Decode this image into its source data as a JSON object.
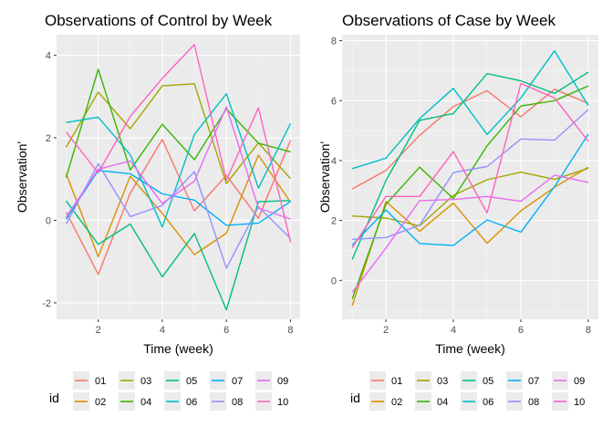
{
  "legend_title": "id",
  "ids": [
    "01",
    "02",
    "03",
    "04",
    "05",
    "06",
    "07",
    "08",
    "09",
    "10"
  ],
  "colors": [
    "#F8766D",
    "#D89000",
    "#A3A500",
    "#39B600",
    "#00BF7D",
    "#00BFC4",
    "#00B0F6",
    "#9590FF",
    "#E76BF3",
    "#FF62BC"
  ],
  "chart_data": [
    {
      "type": "line",
      "title": "Observations of Control by Week",
      "xlabel": "Time (week)",
      "ylabel": "Observation'",
      "xlim": [
        0.7,
        8.3
      ],
      "ylim": [
        -2.4,
        4.5
      ],
      "xticks": [
        2,
        4,
        6,
        8
      ],
      "yticks": [
        -2,
        0,
        2,
        4
      ],
      "grid": true,
      "legend": "bottom",
      "x": [
        1,
        2,
        3,
        4,
        5,
        6,
        7,
        8
      ],
      "series": [
        {
          "name": "01",
          "values": [
            0.2,
            -1.31,
            0.66,
            1.96,
            0.23,
            1.09,
            0.05,
            1.94
          ]
        },
        {
          "name": "02",
          "values": [
            1.13,
            -0.88,
            1.07,
            0.17,
            -0.83,
            -0.31,
            1.58,
            0.44
          ]
        },
        {
          "name": "03",
          "values": [
            1.77,
            3.11,
            2.22,
            3.26,
            3.31,
            0.89,
            1.88,
            1.01
          ]
        },
        {
          "name": "04",
          "values": [
            1.04,
            3.66,
            1.22,
            2.33,
            1.47,
            2.7,
            1.87,
            1.66
          ]
        },
        {
          "name": "05",
          "values": [
            0.47,
            -0.58,
            -0.09,
            -1.37,
            -0.32,
            -2.17,
            0.45,
            0.48
          ]
        },
        {
          "name": "06",
          "values": [
            2.37,
            2.5,
            1.59,
            -0.16,
            2.08,
            3.07,
            0.78,
            2.35
          ]
        },
        {
          "name": "07",
          "values": [
            0.03,
            1.21,
            1.13,
            0.64,
            0.49,
            -0.12,
            -0.07,
            0.46
          ]
        },
        {
          "name": "08",
          "values": [
            -0.09,
            1.37,
            0.09,
            0.36,
            1.18,
            -1.16,
            0.33,
            -0.44
          ]
        },
        {
          "name": "09",
          "values": [
            0.08,
            1.24,
            1.44,
            0.41,
            0.95,
            2.75,
            0.3,
            0.03
          ]
        },
        {
          "name": "10",
          "values": [
            2.14,
            1.15,
            2.52,
            3.44,
            4.26,
            0.97,
            2.73,
            -0.53
          ]
        }
      ]
    },
    {
      "type": "line",
      "title": "Observations of Case by Week",
      "xlabel": "Time (week)",
      "ylabel": "Observation'",
      "xlim": [
        0.7,
        8.3
      ],
      "ylim": [
        -1.3,
        8.2
      ],
      "xticks": [
        2,
        4,
        6,
        8
      ],
      "yticks": [
        0,
        2,
        4,
        6,
        8
      ],
      "grid": true,
      "legend": "bottom",
      "x": [
        1,
        2,
        3,
        4,
        5,
        6,
        7,
        8
      ],
      "series": [
        {
          "name": "01",
          "values": [
            3.05,
            3.67,
            4.84,
            5.8,
            6.33,
            5.46,
            6.38,
            5.91
          ]
        },
        {
          "name": "02",
          "values": [
            -0.84,
            2.63,
            1.64,
            2.58,
            1.24,
            2.32,
            3.11,
            3.78
          ]
        },
        {
          "name": "03",
          "values": [
            2.15,
            2.08,
            1.82,
            2.84,
            3.36,
            3.61,
            3.37,
            3.74
          ]
        },
        {
          "name": "04",
          "values": [
            -0.62,
            2.54,
            3.78,
            2.73,
            4.49,
            5.82,
            6.0,
            6.49
          ]
        },
        {
          "name": "05",
          "values": [
            0.7,
            3.33,
            5.34,
            5.57,
            6.9,
            6.66,
            6.24,
            6.95
          ]
        },
        {
          "name": "06",
          "values": [
            3.73,
            4.08,
            5.4,
            6.41,
            4.87,
            6.09,
            7.66,
            5.83
          ]
        },
        {
          "name": "07",
          "values": [
            1.18,
            2.35,
            1.23,
            1.17,
            2.02,
            1.61,
            3.13,
            4.88
          ]
        },
        {
          "name": "08",
          "values": [
            1.37,
            1.43,
            1.84,
            3.6,
            3.8,
            4.72,
            4.68,
            5.7
          ]
        },
        {
          "name": "09",
          "values": [
            -0.4,
            1.08,
            2.66,
            2.7,
            2.8,
            2.64,
            3.51,
            3.27
          ]
        },
        {
          "name": "10",
          "values": [
            1.09,
            2.8,
            2.8,
            4.3,
            2.25,
            6.57,
            6.09,
            4.64
          ]
        }
      ]
    }
  ]
}
